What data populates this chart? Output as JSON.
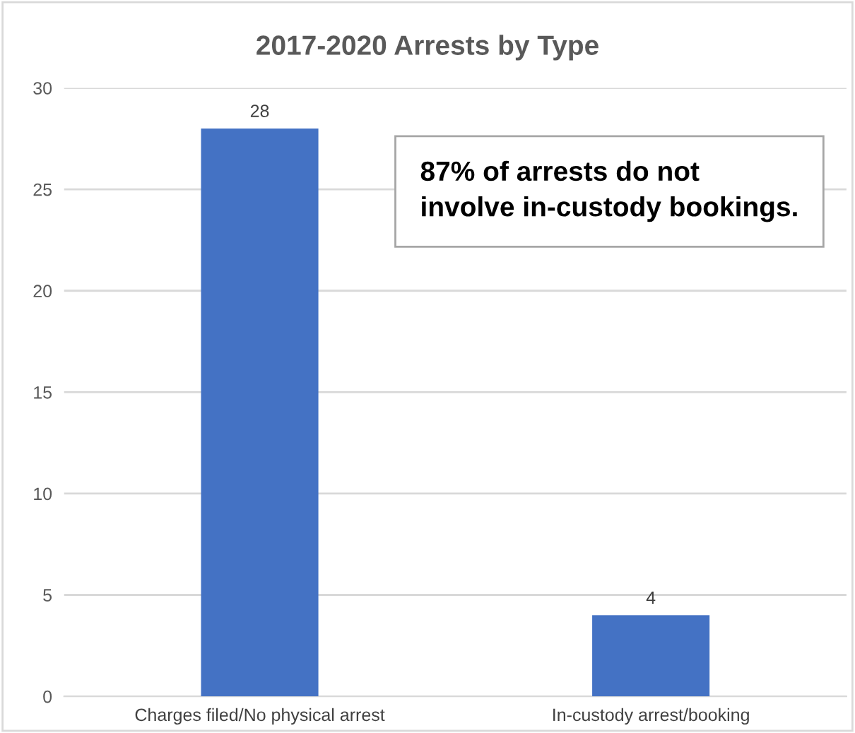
{
  "chart_data": {
    "type": "bar",
    "title": "2017-2020 Arrests by Type",
    "categories": [
      "Charges filed/No physical arrest",
      "In-custody arrest/booking"
    ],
    "values": [
      28,
      4
    ],
    "color": "#4472c4",
    "ylim": [
      0,
      30
    ],
    "yticks": [
      0,
      5,
      10,
      15,
      20,
      25,
      30
    ],
    "grid": "y",
    "data_labels": true,
    "annotations": [
      "87% of arrests do not\ninvolve in-custody bookings."
    ]
  }
}
